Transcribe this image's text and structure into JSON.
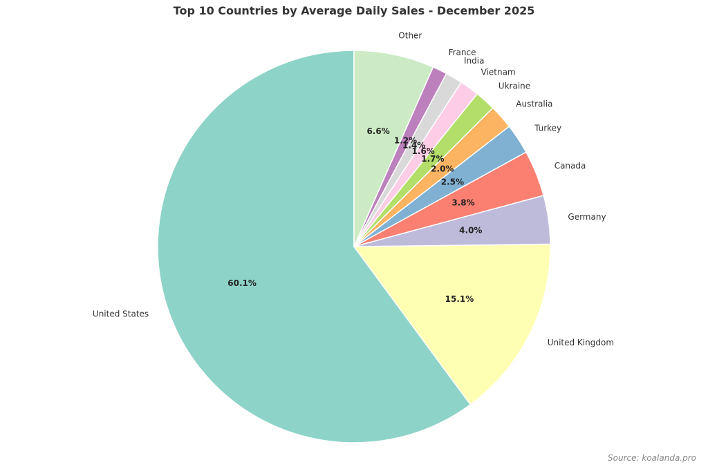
{
  "chart_data": {
    "type": "pie",
    "title": "Top 10 Countries by Average Daily Sales - December 2025",
    "categories": [
      "United States",
      "United Kingdom",
      "Germany",
      "Canada",
      "Turkey",
      "Australia",
      "Ukraine",
      "Vietnam",
      "India",
      "France",
      "Other"
    ],
    "values": [
      60.1,
      15.1,
      4.0,
      3.8,
      2.5,
      2.0,
      1.7,
      1.6,
      1.4,
      1.2,
      6.6
    ],
    "value_labels": [
      "60.1%",
      "15.1%",
      "4.0%",
      "3.8%",
      "2.5%",
      "2.0%",
      "1.7%",
      "1.6%",
      "1.4%",
      "1.2%",
      "6.6%"
    ],
    "colors": [
      "#8dd3c7",
      "#ffffb3",
      "#bebada",
      "#fb8072",
      "#80b1d3",
      "#fdb462",
      "#b3de69",
      "#fccde5",
      "#d9d9d9",
      "#bc80bd",
      "#ccebc5"
    ],
    "start_angle_deg": 90,
    "direction": "counterclockwise",
    "source": "Source: koalanda.pro"
  }
}
